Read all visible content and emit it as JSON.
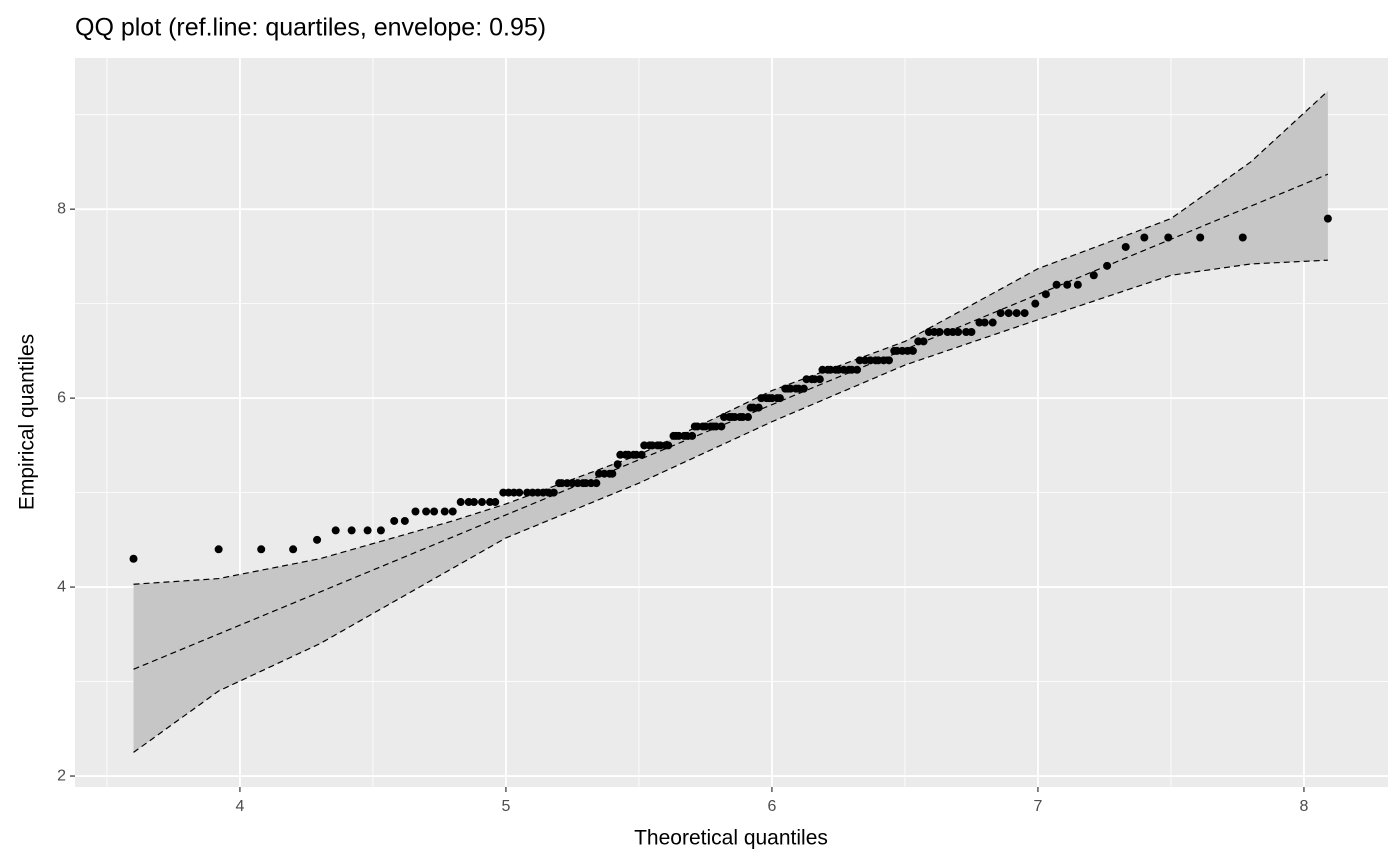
{
  "chart_data": {
    "type": "scatter",
    "title": "QQ plot (ref.line: quartiles, envelope: 0.95)",
    "x_label": "Theoretical quantiles",
    "y_label": "Empirical quantiles",
    "xlim": [
      3.38,
      8.316
    ],
    "ylim": [
      1.884,
      9.6
    ],
    "xticks": [
      4,
      5,
      6,
      7,
      8
    ],
    "yticks": [
      2,
      4,
      6,
      8
    ],
    "grid": true,
    "point_color": "#000000",
    "band_color": "#c6c6c6",
    "x": [
      3.6,
      3.92,
      4.08,
      4.2,
      4.29,
      4.36,
      4.42,
      4.48,
      4.53,
      4.58,
      4.62,
      4.66,
      4.7,
      4.73,
      4.77,
      4.8,
      4.83,
      4.86,
      4.88,
      4.91,
      4.94,
      4.96,
      4.99,
      5.01,
      5.03,
      5.05,
      5.08,
      5.1,
      5.12,
      5.14,
      5.16,
      5.18,
      5.2,
      5.21,
      5.23,
      5.25,
      5.27,
      5.29,
      5.3,
      5.32,
      5.34,
      5.35,
      5.37,
      5.39,
      5.4,
      5.42,
      5.43,
      5.45,
      5.46,
      5.48,
      5.49,
      5.51,
      5.52,
      5.54,
      5.55,
      5.57,
      5.58,
      5.6,
      5.61,
      5.63,
      5.64,
      5.65,
      5.67,
      5.68,
      5.7,
      5.71,
      5.72,
      5.74,
      5.75,
      5.77,
      5.78,
      5.79,
      5.81,
      5.82,
      5.84,
      5.85,
      5.86,
      5.88,
      5.89,
      5.91,
      5.92,
      5.93,
      5.95,
      5.96,
      5.98,
      5.99,
      6.0,
      6.02,
      6.03,
      6.05,
      6.06,
      6.07,
      6.09,
      6.1,
      6.12,
      6.13,
      6.15,
      6.16,
      6.18,
      6.19,
      6.21,
      6.22,
      6.24,
      6.25,
      6.27,
      6.29,
      6.3,
      6.32,
      6.33,
      6.35,
      6.37,
      6.39,
      6.4,
      6.42,
      6.44,
      6.46,
      6.47,
      6.49,
      6.51,
      6.53,
      6.55,
      6.57,
      6.59,
      6.61,
      6.63,
      6.66,
      6.68,
      6.7,
      6.73,
      6.75,
      6.78,
      6.8,
      6.83,
      6.86,
      6.89,
      6.92,
      6.95,
      6.99,
      7.03,
      7.07,
      7.11,
      7.15,
      7.21,
      7.26,
      7.33,
      7.4,
      7.49,
      7.61,
      7.77,
      8.09
    ],
    "y": [
      4.3,
      4.4,
      4.4,
      4.4,
      4.5,
      4.6,
      4.6,
      4.6,
      4.6,
      4.7,
      4.7,
      4.8,
      4.8,
      4.8,
      4.8,
      4.8,
      4.9,
      4.9,
      4.9,
      4.9,
      4.9,
      4.9,
      5.0,
      5.0,
      5.0,
      5.0,
      5.0,
      5.0,
      5.0,
      5.0,
      5.0,
      5.0,
      5.1,
      5.1,
      5.1,
      5.1,
      5.1,
      5.1,
      5.1,
      5.1,
      5.1,
      5.2,
      5.2,
      5.2,
      5.2,
      5.3,
      5.4,
      5.4,
      5.4,
      5.4,
      5.4,
      5.4,
      5.5,
      5.5,
      5.5,
      5.5,
      5.5,
      5.5,
      5.5,
      5.6,
      5.6,
      5.6,
      5.6,
      5.6,
      5.6,
      5.7,
      5.7,
      5.7,
      5.7,
      5.7,
      5.7,
      5.7,
      5.7,
      5.8,
      5.8,
      5.8,
      5.8,
      5.8,
      5.8,
      5.8,
      5.9,
      5.9,
      5.9,
      6.0,
      6.0,
      6.0,
      6.0,
      6.0,
      6.0,
      6.1,
      6.1,
      6.1,
      6.1,
      6.1,
      6.1,
      6.2,
      6.2,
      6.2,
      6.2,
      6.3,
      6.3,
      6.3,
      6.3,
      6.3,
      6.3,
      6.3,
      6.3,
      6.3,
      6.4,
      6.4,
      6.4,
      6.4,
      6.4,
      6.4,
      6.4,
      6.5,
      6.5,
      6.5,
      6.5,
      6.5,
      6.6,
      6.6,
      6.7,
      6.7,
      6.7,
      6.7,
      6.7,
      6.7,
      6.7,
      6.7,
      6.8,
      6.8,
      6.8,
      6.9,
      6.9,
      6.9,
      6.9,
      7.0,
      7.1,
      7.2,
      7.2,
      7.2,
      7.3,
      7.4,
      7.6,
      7.7,
      7.7,
      7.7,
      7.7,
      7.9
    ],
    "ref_line": {
      "x": [
        3.6,
        8.09
      ],
      "y": [
        3.13,
        8.37
      ]
    },
    "envelope": {
      "x": [
        3.6,
        3.92,
        4.3,
        4.8,
        5.0,
        5.5,
        6.0,
        6.5,
        7.0,
        7.5,
        7.8,
        8.09
      ],
      "lower": [
        2.25,
        2.9,
        3.4,
        4.2,
        4.52,
        5.1,
        5.75,
        6.35,
        6.83,
        7.3,
        7.42,
        7.46
      ],
      "upper": [
        4.03,
        4.09,
        4.3,
        4.7,
        4.88,
        5.4,
        6.08,
        6.6,
        7.37,
        7.9,
        8.5,
        9.25
      ]
    }
  }
}
